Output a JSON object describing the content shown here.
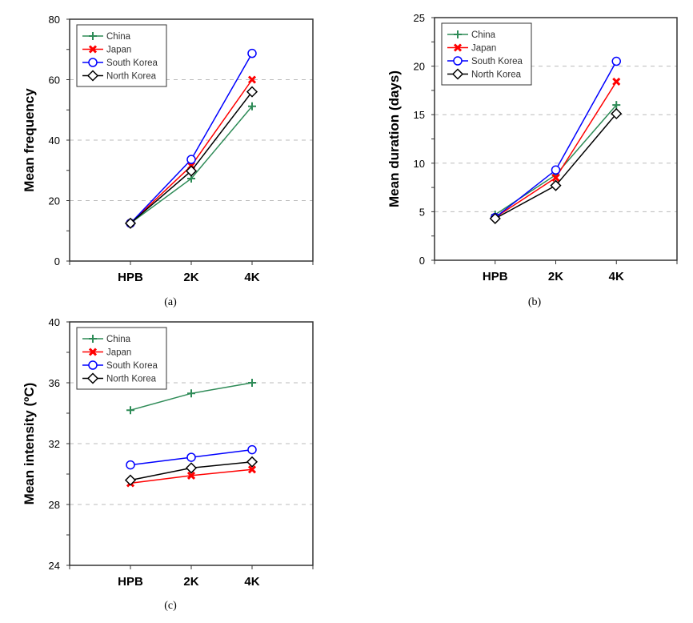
{
  "chart_data": [
    {
      "type": "line",
      "caption": "(a)",
      "ylabel": "Mean frequency",
      "categories": [
        "HPB",
        "2K",
        "4K"
      ],
      "ylim": [
        0,
        80
      ],
      "yticks": [
        0,
        20,
        40,
        60,
        80
      ],
      "grid": "dashed horizontal at major ticks",
      "legend": "top-left",
      "series": [
        {
          "name": "China",
          "color": "#2e8b57",
          "marker": "plus",
          "values": [
            12.5,
            27.3,
            51.2
          ]
        },
        {
          "name": "Japan",
          "color": "#ff0000",
          "marker": "x",
          "values": [
            12.5,
            31.5,
            60.0
          ]
        },
        {
          "name": "South Korea",
          "color": "#0000ff",
          "marker": "circle",
          "values": [
            12.5,
            33.6,
            68.7
          ]
        },
        {
          "name": "North Korea",
          "color": "#000000",
          "marker": "diamond",
          "values": [
            12.5,
            29.8,
            56.0
          ]
        }
      ]
    },
    {
      "type": "line",
      "caption": "(b)",
      "ylabel": "Mean duration (days)",
      "categories": [
        "HPB",
        "2K",
        "4K"
      ],
      "ylim": [
        0,
        25
      ],
      "yticks": [
        0,
        5,
        10,
        15,
        20,
        25
      ],
      "grid": "dashed horizontal at major ticks",
      "legend": "top-left",
      "series": [
        {
          "name": "China",
          "color": "#2e8b57",
          "marker": "plus",
          "values": [
            4.7,
            8.8,
            16.0
          ]
        },
        {
          "name": "Japan",
          "color": "#ff0000",
          "marker": "x",
          "values": [
            4.4,
            8.5,
            18.4
          ]
        },
        {
          "name": "South Korea",
          "color": "#0000ff",
          "marker": "circle",
          "values": [
            4.4,
            9.3,
            20.5
          ]
        },
        {
          "name": "North Korea",
          "color": "#000000",
          "marker": "diamond",
          "values": [
            4.3,
            7.7,
            15.1
          ]
        }
      ]
    },
    {
      "type": "line",
      "caption": "(c)",
      "ylabel": "Mean intensity (ºC)",
      "categories": [
        "HPB",
        "2K",
        "4K"
      ],
      "ylim": [
        24,
        40
      ],
      "yticks": [
        24,
        28,
        32,
        36,
        40
      ],
      "grid": "dashed horizontal at major ticks",
      "legend": "top-left",
      "series": [
        {
          "name": "China",
          "color": "#2e8b57",
          "marker": "plus",
          "values": [
            34.2,
            35.3,
            36.0
          ]
        },
        {
          "name": "Japan",
          "color": "#ff0000",
          "marker": "x",
          "values": [
            29.4,
            29.9,
            30.3
          ]
        },
        {
          "name": "South Korea",
          "color": "#0000ff",
          "marker": "circle",
          "values": [
            30.6,
            31.1,
            31.6
          ]
        },
        {
          "name": "North Korea",
          "color": "#000000",
          "marker": "diamond",
          "values": [
            29.6,
            30.4,
            30.8
          ]
        }
      ]
    }
  ]
}
